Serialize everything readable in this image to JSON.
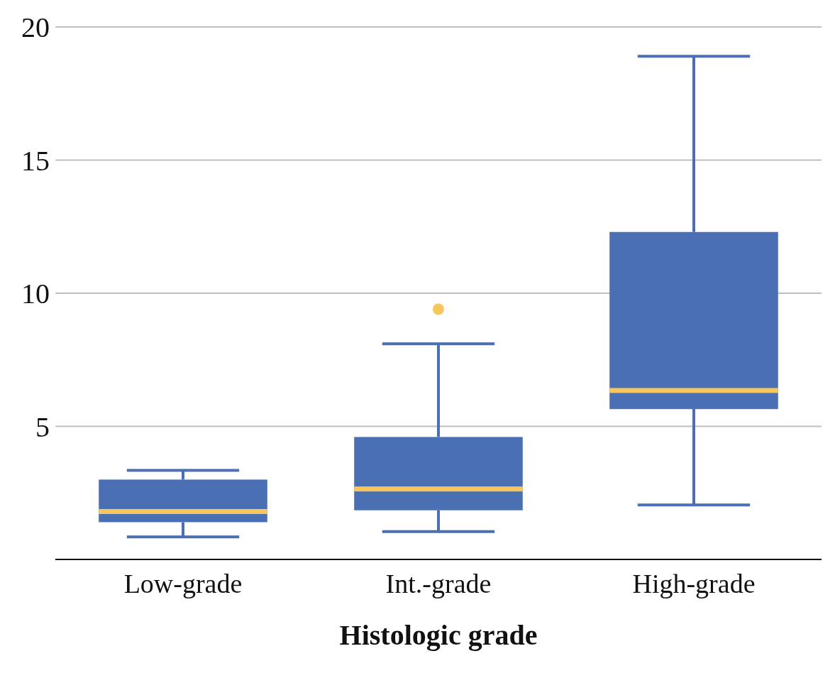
{
  "chart_data": {
    "type": "box",
    "xlabel": "Histologic grade",
    "categories": [
      "Low-grade",
      "Int.-grade",
      "High-grade"
    ],
    "series": [
      {
        "color": "#4a6fb3",
        "boxes": [
          {
            "low": 0.85,
            "q1": 1.4,
            "median": 1.8,
            "q3": 3.0,
            "high": 3.35
          },
          {
            "low": 1.05,
            "q1": 1.85,
            "median": 2.65,
            "q3": 4.6,
            "high": 8.1,
            "outliers": [
              9.4
            ]
          },
          {
            "low": 2.05,
            "q1": 5.65,
            "median": 6.35,
            "q3": 12.3,
            "high": 18.9
          }
        ]
      }
    ],
    "ylim": [
      0,
      20
    ],
    "yticks": [
      5,
      10,
      15,
      20
    ],
    "grid": "y",
    "legend": false
  }
}
